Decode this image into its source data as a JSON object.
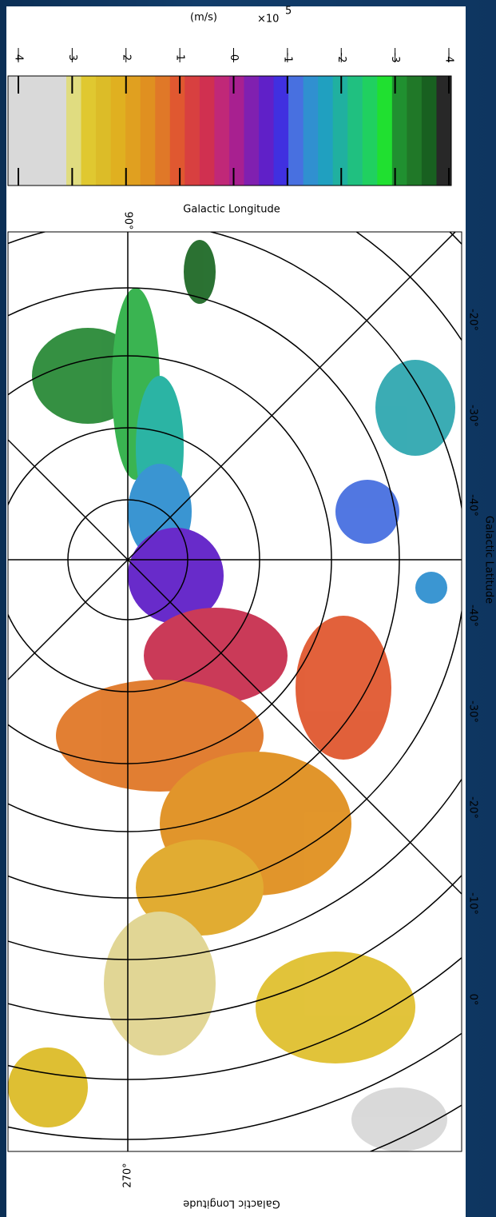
{
  "colorbar": {
    "unit": "(m/s)",
    "multiplier": "×10",
    "exponent": "5",
    "ticks": [
      4,
      3,
      2,
      1,
      0,
      -1,
      -2,
      -3,
      -4
    ]
  },
  "map": {
    "top_axis_label": "Galactic Longitude",
    "top_label": "90°",
    "bottom_label": "270°",
    "bottom_axis_label": "Galactic Longitude",
    "latitude_labels": [
      "-20°",
      "-30°",
      "-40°",
      "-40°",
      "-30°",
      "-20°",
      "-10°",
      "0°"
    ],
    "right_axis_label": "Galactic Latitude"
  }
}
